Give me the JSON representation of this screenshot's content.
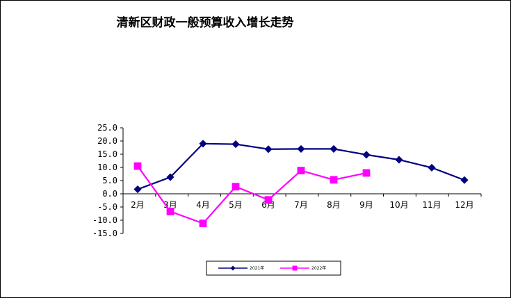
{
  "chart_data": {
    "type": "line",
    "title": "清新区财政一般预算收入增长走势",
    "xlabel": "",
    "ylabel": "",
    "categories": [
      "2月",
      "3月",
      "4月",
      "5月",
      "6月",
      "7月",
      "8月",
      "9月",
      "10月",
      "11月",
      "12月"
    ],
    "y_ticks": [
      "25.0",
      "20.0",
      "15.0",
      "10.0",
      "5.0",
      "0.0",
      "-5.0",
      "-10.0",
      "-15.0"
    ],
    "ylim": [
      -15,
      25
    ],
    "grid": false,
    "legend_position": "bottom",
    "series": [
      {
        "name": "2021年",
        "color": "#000080",
        "marker": "diamond",
        "values": [
          1.7,
          6.3,
          19.0,
          18.8,
          16.9,
          17.0,
          17.0,
          14.8,
          12.9,
          9.9,
          5.2
        ]
      },
      {
        "name": "2022年",
        "color": "#FF00FF",
        "marker": "square",
        "values": [
          10.5,
          -6.7,
          -11.2,
          2.7,
          -2.3,
          8.8,
          5.3,
          7.9,
          null,
          null,
          null
        ]
      }
    ]
  }
}
